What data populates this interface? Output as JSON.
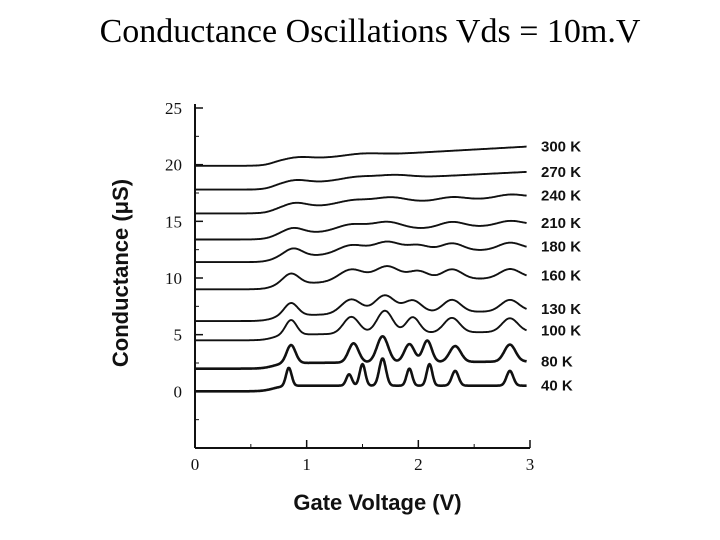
{
  "slide": {
    "title": "Conductance Oscillations Vds = 10m.V"
  },
  "chart_data": {
    "type": "line",
    "title": "Conductance Oscillations Vds = 10m.V",
    "xlabel": "Gate Voltage (V)",
    "ylabel": "Conductance (μS)",
    "xlim": [
      0,
      3
    ],
    "ylim": [
      -5,
      25
    ],
    "xticks": [
      0,
      1,
      2,
      3
    ],
    "yticks": [
      0,
      5,
      10,
      15,
      20,
      25
    ],
    "legend": "right, labels aligned to curve ends",
    "series": [
      {
        "name": "40 K",
        "baseline": 0.0,
        "peaks": [
          [
            0.84,
            1.6,
            0.025
          ],
          [
            1.38,
            1.0,
            0.025
          ],
          [
            1.5,
            1.9,
            0.025
          ],
          [
            1.68,
            2.4,
            0.03
          ],
          [
            1.92,
            1.5,
            0.025
          ],
          [
            2.1,
            1.9,
            0.025
          ],
          [
            2.33,
            1.3,
            0.03
          ],
          [
            2.82,
            1.3,
            0.03
          ]
        ]
      },
      {
        "name": "80 K",
        "baseline": 2.0,
        "peaks": [
          [
            0.86,
            1.6,
            0.04
          ],
          [
            1.42,
            1.7,
            0.045
          ],
          [
            1.68,
            2.3,
            0.05
          ],
          [
            1.92,
            1.6,
            0.045
          ],
          [
            2.08,
            1.9,
            0.04
          ],
          [
            2.33,
            1.4,
            0.05
          ],
          [
            2.82,
            1.5,
            0.05
          ]
        ]
      },
      {
        "name": "100 K",
        "baseline": 4.5,
        "peaks": [
          [
            0.86,
            1.3,
            0.05
          ],
          [
            1.4,
            1.5,
            0.07
          ],
          [
            1.7,
            2.0,
            0.07
          ],
          [
            1.95,
            1.4,
            0.06
          ],
          [
            2.3,
            1.3,
            0.07
          ],
          [
            2.82,
            1.2,
            0.07
          ]
        ]
      },
      {
        "name": "130 K",
        "baseline": 6.2,
        "peaks": [
          [
            0.86,
            1.1,
            0.06
          ],
          [
            1.4,
            1.3,
            0.09
          ],
          [
            1.7,
            1.6,
            0.09
          ],
          [
            1.95,
            1.1,
            0.08
          ],
          [
            2.3,
            1.1,
            0.08
          ],
          [
            2.82,
            1.0,
            0.08
          ]
        ]
      },
      {
        "name": "160 K",
        "baseline": 9.0,
        "peaks": [
          [
            0.86,
            0.9,
            0.07
          ],
          [
            1.4,
            1.1,
            0.11
          ],
          [
            1.72,
            1.3,
            0.11
          ],
          [
            2.0,
            0.8,
            0.09
          ],
          [
            2.3,
            0.9,
            0.09
          ],
          [
            2.82,
            0.8,
            0.09
          ]
        ]
      },
      {
        "name": "180 K",
        "baseline": 11.4,
        "peaks": [
          [
            0.88,
            0.7,
            0.08
          ],
          [
            1.4,
            0.8,
            0.12
          ],
          [
            1.72,
            1.0,
            0.12
          ],
          [
            2.0,
            0.6,
            0.1
          ],
          [
            2.3,
            0.7,
            0.1
          ],
          [
            2.82,
            0.6,
            0.1
          ]
        ]
      },
      {
        "name": "210 K",
        "baseline": 13.4,
        "peaks": [
          [
            0.88,
            0.5,
            0.09
          ],
          [
            1.4,
            0.6,
            0.13
          ],
          [
            1.72,
            0.7,
            0.13
          ],
          [
            2.3,
            0.5,
            0.11
          ],
          [
            2.82,
            0.4,
            0.11
          ]
        ]
      },
      {
        "name": "240 K",
        "baseline": 15.7,
        "peaks": [
          [
            0.9,
            0.4,
            0.1
          ],
          [
            1.42,
            0.4,
            0.14
          ],
          [
            1.75,
            0.5,
            0.14
          ],
          [
            2.3,
            0.3,
            0.12
          ],
          [
            2.82,
            0.3,
            0.12
          ]
        ]
      },
      {
        "name": "270 K",
        "baseline": 17.8,
        "peaks": [
          [
            0.9,
            0.3,
            0.11
          ],
          [
            1.45,
            0.3,
            0.15
          ],
          [
            1.78,
            0.3,
            0.15
          ]
        ]
      },
      {
        "name": "300 K",
        "baseline": 19.9,
        "peaks": [
          [
            0.92,
            0.2,
            0.12
          ],
          [
            1.5,
            0.2,
            0.16
          ]
        ]
      }
    ]
  }
}
